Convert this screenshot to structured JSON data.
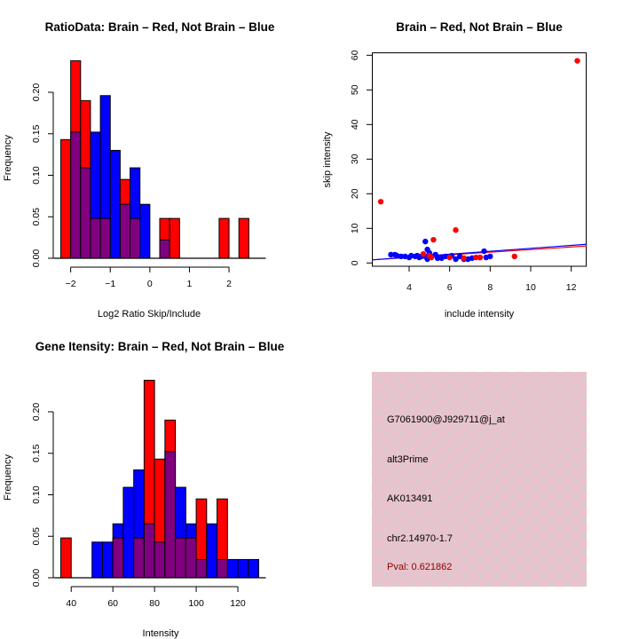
{
  "colors": {
    "brain": "#ff0000",
    "not_brain": "#0000ff",
    "overlap": "#800080",
    "info_panel": "#e8c2cb",
    "pval_text": "#8b0000"
  },
  "chart_data": [
    {
      "id": "ratio-histogram",
      "type": "bar",
      "title": "RatioData: Brain – Red, Not Brain – Blue",
      "xlabel": "Log2 Ratio Skip/Include",
      "ylabel": "Frequency",
      "xlim": [
        -2.25,
        2.75
      ],
      "ylim": [
        0,
        0.2
      ],
      "xticks": [
        -2,
        -1,
        0,
        1,
        2
      ],
      "xtick_labels": [
        "−2",
        "−1",
        "0",
        "1",
        "2"
      ],
      "yticks": [
        0,
        0.05,
        0.1,
        0.15,
        0.2
      ],
      "ytick_labels": [
        "0.00",
        "0.05",
        "0.10",
        "0.15",
        "0.20"
      ],
      "bin_start": -2.25,
      "bin_width": 0.25,
      "series": [
        {
          "name": "Brain",
          "color": "#ff0000",
          "values": [
            0.143,
            0.238,
            0.19,
            0.048,
            0.048,
            0,
            0.095,
            0.048,
            0,
            0,
            0.048,
            0.048,
            0,
            0,
            0,
            0,
            0.048,
            0,
            0.048,
            0
          ]
        },
        {
          "name": "Not Brain",
          "color": "#0000ff",
          "values": [
            0,
            0.152,
            0.109,
            0.152,
            0.196,
            0.13,
            0.065,
            0.109,
            0.065,
            0,
            0.022,
            0,
            0,
            0,
            0,
            0,
            0,
            0,
            0,
            0
          ]
        }
      ]
    },
    {
      "id": "intensity-scatter",
      "type": "scatter",
      "title": "Brain – Red, Not Brain – Blue",
      "xlabel": "include intensity",
      "ylabel": "skip intensity",
      "xlim": [
        2.17,
        12.75
      ],
      "ylim": [
        -1,
        61
      ],
      "xticks": [
        4,
        6,
        8,
        10,
        12
      ],
      "yticks": [
        0,
        10,
        20,
        30,
        40,
        50,
        60
      ],
      "series": [
        {
          "name": "Brain",
          "color": "#ff0000",
          "points": [
            [
              2.6,
              17.7
            ],
            [
              12.3,
              58.4
            ],
            [
              6.3,
              9.5
            ],
            [
              5.2,
              6.7
            ],
            [
              9.2,
              1.9
            ],
            [
              4.7,
              2.6
            ],
            [
              5.1,
              1.6
            ],
            [
              6.0,
              1.6
            ],
            [
              6.7,
              1.4
            ],
            [
              7.3,
              1.6
            ],
            [
              7.5,
              1.6
            ],
            [
              5.0,
              2.1
            ]
          ],
          "fit_line": [
            [
              2.17,
              0.9
            ],
            [
              12.75,
              4.9
            ]
          ]
        },
        {
          "name": "Not Brain",
          "color": "#0000ff",
          "points": [
            [
              3.1,
              2.4
            ],
            [
              3.3,
              2.4
            ],
            [
              3.4,
              2.1
            ],
            [
              3.6,
              1.9
            ],
            [
              3.8,
              1.9
            ],
            [
              4.0,
              1.6
            ],
            [
              4.1,
              2.1
            ],
            [
              4.3,
              1.9
            ],
            [
              4.4,
              2.1
            ],
            [
              4.5,
              1.6
            ],
            [
              4.6,
              1.9
            ],
            [
              4.8,
              1.9
            ],
            [
              4.9,
              1.1
            ],
            [
              4.8,
              6.2
            ],
            [
              4.9,
              3.9
            ],
            [
              5.0,
              2.9
            ],
            [
              5.1,
              1.9
            ],
            [
              5.3,
              2.4
            ],
            [
              5.4,
              1.4
            ],
            [
              5.6,
              1.4
            ],
            [
              5.8,
              1.9
            ],
            [
              6.1,
              2.1
            ],
            [
              6.3,
              1.1
            ],
            [
              6.5,
              1.9
            ],
            [
              6.7,
              1.1
            ],
            [
              6.9,
              1.1
            ],
            [
              7.1,
              1.4
            ],
            [
              7.8,
              1.6
            ],
            [
              8.0,
              1.9
            ],
            [
              7.7,
              3.4
            ],
            [
              7.5,
              1.6
            ]
          ],
          "fit_line": [
            [
              2.17,
              0.9
            ],
            [
              12.75,
              5.4
            ]
          ]
        }
      ]
    },
    {
      "id": "gene-intensity-histogram",
      "type": "bar",
      "title": "Gene Itensity: Brain – Red, Not Brain – Blue",
      "xlabel": "Intensity",
      "ylabel": "Frequency",
      "xlim": [
        35,
        130
      ],
      "ylim": [
        0,
        0.2
      ],
      "xticks": [
        40,
        60,
        80,
        100,
        120
      ],
      "yticks": [
        0,
        0.05,
        0.1,
        0.15,
        0.2
      ],
      "ytick_labels": [
        "0.00",
        "0.05",
        "0.10",
        "0.15",
        "0.20"
      ],
      "bin_start": 35,
      "bin_width": 5,
      "series": [
        {
          "name": "Brain",
          "color": "#ff0000",
          "values": [
            0.048,
            0,
            0,
            0,
            0,
            0.048,
            0,
            0.048,
            0.238,
            0.143,
            0.19,
            0.048,
            0.048,
            0.095,
            0,
            0.095,
            0,
            0,
            0
          ]
        },
        {
          "name": "Not Brain",
          "color": "#0000ff",
          "values": [
            0,
            0,
            0,
            0.043,
            0.043,
            0.065,
            0.109,
            0.13,
            0.065,
            0.043,
            0.152,
            0.109,
            0.065,
            0.022,
            0.065,
            0.022,
            0.022,
            0.022,
            0.022
          ]
        }
      ]
    }
  ],
  "info_panel": {
    "probe_id": "G7061900@J929711@j_at",
    "event_type": "alt3Prime",
    "accession": "AK013491",
    "location": "chr2.14970-1.7",
    "pval": "Pval: 0.621862"
  }
}
